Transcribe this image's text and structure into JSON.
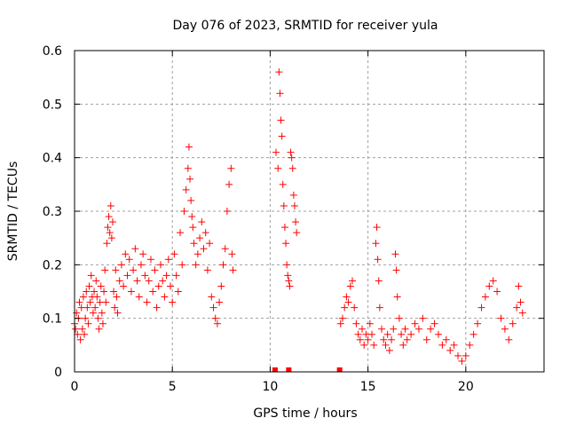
{
  "chart_data": {
    "type": "scatter",
    "title": "Day 076 of 2023, SRMTID for receiver yula",
    "xlabel": "GPS time / hours",
    "ylabel": "SRMTID / TECUs",
    "xlim": [
      0,
      24
    ],
    "ylim": [
      0,
      0.6
    ],
    "xticks": [
      0,
      5,
      10,
      15,
      20
    ],
    "xtick_labels": [
      "0",
      "5",
      "10",
      "15",
      "20"
    ],
    "yticks": [
      0,
      0.1,
      0.2,
      0.3,
      0.4,
      0.5,
      0.6
    ],
    "ytick_labels": [
      "0",
      "0.1",
      "0.2",
      "0.3",
      "0.4",
      "0.5",
      "0.6"
    ],
    "grid": true,
    "marker": "+",
    "color": "#ff0000",
    "series": [
      {
        "name": "SRMTID",
        "points": [
          [
            0.0,
            0.09
          ],
          [
            0.05,
            0.08
          ],
          [
            0.1,
            0.11
          ],
          [
            0.15,
            0.07
          ],
          [
            0.2,
            0.1
          ],
          [
            0.25,
            0.13
          ],
          [
            0.3,
            0.06
          ],
          [
            0.35,
            0.12
          ],
          [
            0.4,
            0.08
          ],
          [
            0.45,
            0.14
          ],
          [
            0.5,
            0.07
          ],
          [
            0.55,
            0.1
          ],
          [
            0.6,
            0.15
          ],
          [
            0.65,
            0.12
          ],
          [
            0.7,
            0.09
          ],
          [
            0.75,
            0.16
          ],
          [
            0.8,
            0.13
          ],
          [
            0.85,
            0.18
          ],
          [
            0.9,
            0.14
          ],
          [
            0.95,
            0.11
          ],
          [
            1.0,
            0.15
          ],
          [
            1.05,
            0.12
          ],
          [
            1.1,
            0.17
          ],
          [
            1.15,
            0.14
          ],
          [
            1.2,
            0.1
          ],
          [
            1.25,
            0.08
          ],
          [
            1.3,
            0.13
          ],
          [
            1.35,
            0.16
          ],
          [
            1.4,
            0.11
          ],
          [
            1.45,
            0.09
          ],
          [
            1.5,
            0.15
          ],
          [
            1.55,
            0.19
          ],
          [
            1.6,
            0.13
          ],
          [
            1.65,
            0.24
          ],
          [
            1.7,
            0.27
          ],
          [
            1.75,
            0.29
          ],
          [
            1.8,
            0.26
          ],
          [
            1.85,
            0.31
          ],
          [
            1.9,
            0.25
          ],
          [
            1.95,
            0.28
          ],
          [
            2.0,
            0.15
          ],
          [
            2.05,
            0.12
          ],
          [
            2.1,
            0.19
          ],
          [
            2.15,
            0.14
          ],
          [
            2.2,
            0.11
          ],
          [
            2.3,
            0.17
          ],
          [
            2.4,
            0.2
          ],
          [
            2.5,
            0.16
          ],
          [
            2.6,
            0.22
          ],
          [
            2.7,
            0.18
          ],
          [
            2.8,
            0.21
          ],
          [
            2.9,
            0.15
          ],
          [
            3.0,
            0.19
          ],
          [
            3.1,
            0.23
          ],
          [
            3.2,
            0.17
          ],
          [
            3.3,
            0.14
          ],
          [
            3.4,
            0.2
          ],
          [
            3.5,
            0.22
          ],
          [
            3.6,
            0.18
          ],
          [
            3.7,
            0.13
          ],
          [
            3.8,
            0.17
          ],
          [
            3.9,
            0.21
          ],
          [
            4.0,
            0.15
          ],
          [
            4.1,
            0.19
          ],
          [
            4.2,
            0.12
          ],
          [
            4.3,
            0.16
          ],
          [
            4.4,
            0.2
          ],
          [
            4.5,
            0.17
          ],
          [
            4.6,
            0.14
          ],
          [
            4.7,
            0.18
          ],
          [
            4.8,
            0.21
          ],
          [
            4.9,
            0.16
          ],
          [
            5.0,
            0.13
          ],
          [
            5.1,
            0.22
          ],
          [
            5.2,
            0.18
          ],
          [
            5.3,
            0.15
          ],
          [
            5.4,
            0.26
          ],
          [
            5.5,
            0.2
          ],
          [
            5.6,
            0.3
          ],
          [
            5.7,
            0.34
          ],
          [
            5.8,
            0.38
          ],
          [
            5.85,
            0.42
          ],
          [
            5.9,
            0.36
          ],
          [
            5.95,
            0.32
          ],
          [
            6.0,
            0.29
          ],
          [
            6.05,
            0.27
          ],
          [
            6.1,
            0.24
          ],
          [
            6.2,
            0.2
          ],
          [
            6.3,
            0.22
          ],
          [
            6.4,
            0.25
          ],
          [
            6.5,
            0.28
          ],
          [
            6.6,
            0.23
          ],
          [
            6.7,
            0.26
          ],
          [
            6.8,
            0.19
          ],
          [
            6.9,
            0.24
          ],
          [
            7.0,
            0.14
          ],
          [
            7.1,
            0.12
          ],
          [
            7.2,
            0.1
          ],
          [
            7.3,
            0.09
          ],
          [
            7.4,
            0.13
          ],
          [
            7.5,
            0.16
          ],
          [
            7.6,
            0.2
          ],
          [
            7.7,
            0.23
          ],
          [
            7.8,
            0.3
          ],
          [
            7.9,
            0.35
          ],
          [
            8.0,
            0.38
          ],
          [
            8.05,
            0.22
          ],
          [
            8.1,
            0.19
          ],
          [
            10.3,
            0.41
          ],
          [
            10.4,
            0.38
          ],
          [
            10.45,
            0.56
          ],
          [
            10.5,
            0.52
          ],
          [
            10.55,
            0.47
          ],
          [
            10.6,
            0.44
          ],
          [
            10.65,
            0.35
          ],
          [
            10.7,
            0.31
          ],
          [
            10.75,
            0.27
          ],
          [
            10.8,
            0.24
          ],
          [
            10.85,
            0.2
          ],
          [
            10.9,
            0.18
          ],
          [
            10.95,
            0.17
          ],
          [
            11.0,
            0.16
          ],
          [
            11.05,
            0.41
          ],
          [
            11.1,
            0.4
          ],
          [
            11.15,
            0.38
          ],
          [
            11.2,
            0.33
          ],
          [
            11.25,
            0.31
          ],
          [
            11.3,
            0.28
          ],
          [
            11.35,
            0.26
          ],
          [
            13.6,
            0.09
          ],
          [
            13.7,
            0.1
          ],
          [
            13.8,
            0.12
          ],
          [
            13.9,
            0.14
          ],
          [
            14.0,
            0.13
          ],
          [
            14.1,
            0.16
          ],
          [
            14.2,
            0.17
          ],
          [
            14.3,
            0.12
          ],
          [
            14.4,
            0.09
          ],
          [
            14.5,
            0.07
          ],
          [
            14.6,
            0.06
          ],
          [
            14.7,
            0.08
          ],
          [
            14.8,
            0.05
          ],
          [
            14.9,
            0.07
          ],
          [
            15.0,
            0.06
          ],
          [
            15.1,
            0.09
          ],
          [
            15.2,
            0.07
          ],
          [
            15.3,
            0.05
          ],
          [
            15.4,
            0.24
          ],
          [
            15.45,
            0.27
          ],
          [
            15.5,
            0.21
          ],
          [
            15.55,
            0.17
          ],
          [
            15.6,
            0.12
          ],
          [
            15.7,
            0.08
          ],
          [
            15.8,
            0.06
          ],
          [
            15.9,
            0.05
          ],
          [
            16.0,
            0.07
          ],
          [
            16.1,
            0.04
          ],
          [
            16.2,
            0.06
          ],
          [
            16.3,
            0.08
          ],
          [
            16.4,
            0.22
          ],
          [
            16.45,
            0.19
          ],
          [
            16.5,
            0.14
          ],
          [
            16.6,
            0.1
          ],
          [
            16.7,
            0.07
          ],
          [
            16.8,
            0.05
          ],
          [
            16.9,
            0.08
          ],
          [
            17.0,
            0.06
          ],
          [
            17.2,
            0.07
          ],
          [
            17.4,
            0.09
          ],
          [
            17.6,
            0.08
          ],
          [
            17.8,
            0.1
          ],
          [
            18.0,
            0.06
          ],
          [
            18.2,
            0.08
          ],
          [
            18.4,
            0.09
          ],
          [
            18.6,
            0.07
          ],
          [
            18.8,
            0.05
          ],
          [
            19.0,
            0.06
          ],
          [
            19.2,
            0.04
          ],
          [
            19.4,
            0.05
          ],
          [
            19.6,
            0.03
          ],
          [
            19.8,
            0.02
          ],
          [
            20.0,
            0.03
          ],
          [
            20.2,
            0.05
          ],
          [
            20.4,
            0.07
          ],
          [
            20.6,
            0.09
          ],
          [
            20.8,
            0.12
          ],
          [
            21.0,
            0.14
          ],
          [
            21.2,
            0.16
          ],
          [
            21.4,
            0.17
          ],
          [
            21.6,
            0.15
          ],
          [
            21.8,
            0.1
          ],
          [
            22.0,
            0.08
          ],
          [
            22.2,
            0.06
          ],
          [
            22.4,
            0.09
          ],
          [
            22.6,
            0.12
          ],
          [
            22.7,
            0.16
          ],
          [
            22.8,
            0.13
          ],
          [
            22.9,
            0.11
          ]
        ]
      },
      {
        "name": "markers-at-zero",
        "points": [
          [
            10.25,
            0
          ],
          [
            10.95,
            0
          ],
          [
            13.55,
            0
          ]
        ]
      }
    ]
  }
}
